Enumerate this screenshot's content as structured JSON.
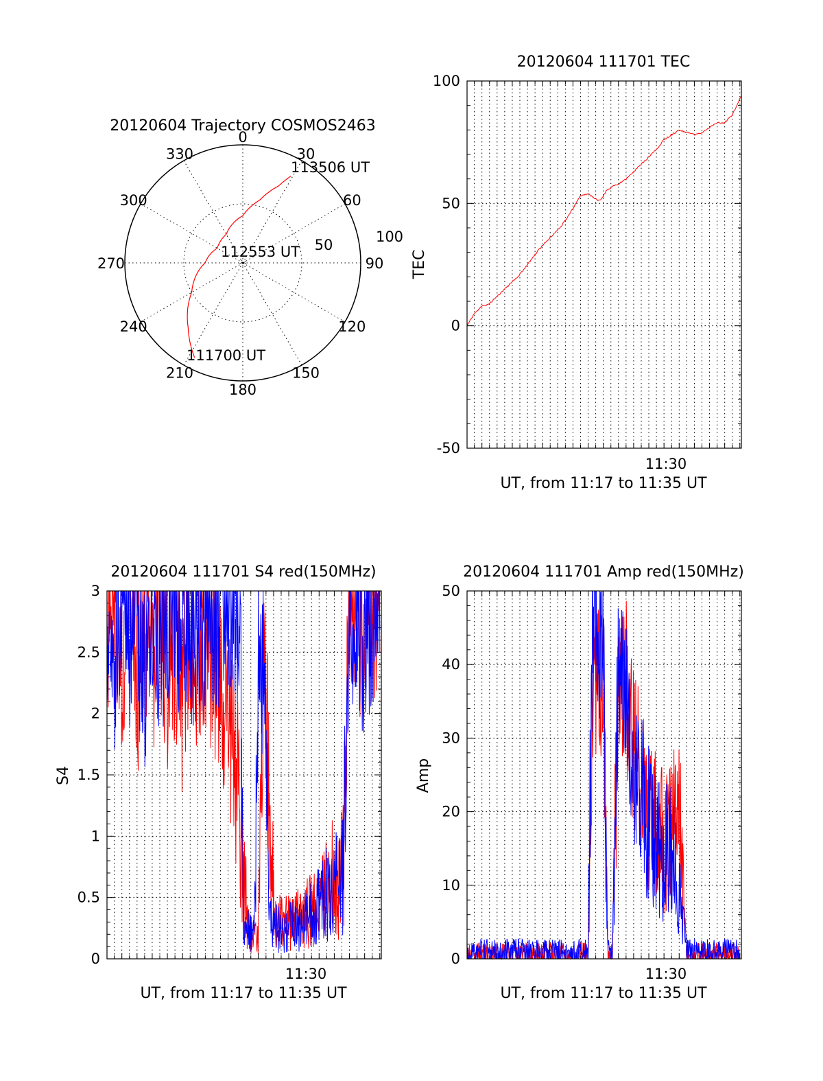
{
  "figure_title": "",
  "polar": {
    "title": "20120604 Trajectory COSMOS2463",
    "azimuth_labels": [
      "0",
      "30",
      "60",
      "90",
      "120",
      "150",
      "180",
      "210",
      "240",
      "270",
      "300",
      "330"
    ],
    "radial_labels": [
      "50",
      "100"
    ],
    "point_labels": {
      "start": "111700 UT",
      "mid": "112553 UT",
      "end": "113506 UT"
    },
    "trace_color": "#ff0000"
  },
  "chart_data": [
    {
      "type": "polar",
      "title": "20120604 Trajectory COSMOS2463",
      "theta_unit": "deg",
      "r_range": [
        0,
        100
      ],
      "grid": true,
      "trajectory": {
        "color": "#ff0000",
        "points": [
          {
            "az": 207,
            "r": 90,
            "label": "111700 UT"
          },
          {
            "az": 220,
            "r": 72
          },
          {
            "az": 240,
            "r": 50
          },
          {
            "az": 270,
            "r": 32
          },
          {
            "az": 300,
            "r": 25
          },
          {
            "az": 330,
            "r": 28
          },
          {
            "az": 360,
            "r": 40
          },
          {
            "az": 15,
            "r": 55
          },
          {
            "az": 25,
            "r": 72
          },
          {
            "az": 29,
            "r": 84,
            "label": "113506 UT"
          }
        ],
        "mid_label": "112553 UT"
      }
    },
    {
      "type": "line",
      "title": "20120604 111701 TEC",
      "xlabel": "UT, from 11:17 to 11:35 UT",
      "ylabel": "TEC",
      "x_unit": "minutes",
      "xlim": [
        17.02,
        35.1
      ],
      "ylim": [
        -50,
        100
      ],
      "yticks": [
        "-50",
        "0",
        "50",
        "100"
      ],
      "xticks": [
        {
          "value": 30,
          "label": "11:30"
        }
      ],
      "grid": true,
      "series": [
        {
          "color": "#ff0000",
          "x": [
            17.02,
            17.5,
            18.0,
            18.5,
            19.0,
            19.5,
            20.0,
            20.5,
            21.0,
            21.5,
            22.0,
            22.5,
            23.0,
            23.5,
            24.0,
            24.5,
            25.0,
            25.4,
            25.8,
            26.2,
            26.6,
            27.0,
            27.5,
            28.0,
            28.5,
            29.0,
            29.5,
            30.0,
            30.5,
            31.0,
            31.5,
            32.0,
            32.5,
            33.0,
            33.5,
            34.0,
            34.5,
            35.1
          ],
          "values": [
            0,
            5,
            8,
            9,
            12,
            15,
            18,
            21,
            25,
            29,
            33,
            36,
            39,
            43,
            48,
            53,
            54,
            52,
            51,
            55,
            57,
            58,
            60,
            63,
            66,
            69,
            72,
            76,
            78,
            80,
            79,
            78,
            79,
            81,
            83,
            83,
            86,
            94
          ]
        }
      ]
    },
    {
      "type": "line",
      "title": "20120604 111701 S4 red(150MHz)",
      "xlabel": "UT, from 11:17 to 11:35 UT",
      "ylabel": "S4",
      "x_unit": "minutes",
      "xlim": [
        17.02,
        35.1
      ],
      "ylim": [
        0,
        3
      ],
      "yticks": [
        "0",
        "0.5",
        "1",
        "1.5",
        "2",
        "2.5",
        "3"
      ],
      "xticks": [
        {
          "value": 30,
          "label": "11:30"
        }
      ],
      "grid": true,
      "series": [
        {
          "color": "#ff0000",
          "x": [
            17.0,
            17.5,
            18.0,
            18.5,
            19.0,
            19.5,
            20.0,
            20.5,
            21.0,
            21.5,
            22.0,
            22.5,
            23.0,
            23.5,
            24.0,
            24.5,
            25.0,
            25.4,
            25.8,
            26.0,
            26.3,
            26.7,
            27.0,
            27.4,
            27.8,
            28.2,
            28.6,
            29.0,
            29.4,
            29.8,
            30.2,
            30.6,
            31.0,
            31.4,
            31.8,
            32.2,
            32.6,
            33.0,
            33.5,
            34.0,
            34.5,
            35.0
          ],
          "values": [
            2.6,
            2.8,
            2.5,
            2.9,
            2.2,
            2.7,
            2.4,
            2.9,
            2.3,
            2.6,
            2.1,
            2.8,
            2.4,
            2.6,
            2.4,
            2.2,
            2.0,
            1.6,
            1.2,
            0.85,
            0.25,
            0.2,
            0.15,
            2.5,
            0.9,
            0.3,
            0.28,
            0.3,
            0.32,
            0.35,
            0.38,
            0.4,
            0.45,
            0.55,
            0.62,
            0.7,
            0.8,
            2.9,
            2.8,
            2.7,
            2.9,
            2.8
          ]
        },
        {
          "color": "#0000ff",
          "x": [
            17.0,
            17.5,
            18.0,
            18.5,
            19.0,
            19.5,
            20.0,
            20.5,
            21.0,
            21.5,
            22.0,
            22.5,
            23.0,
            23.5,
            24.0,
            24.5,
            25.0,
            25.4,
            25.8,
            26.0,
            26.3,
            26.7,
            27.0,
            27.4,
            27.8,
            28.2,
            28.6,
            29.0,
            29.4,
            29.8,
            30.2,
            30.6,
            31.0,
            31.4,
            31.8,
            32.2,
            32.6,
            33.0,
            33.5,
            34.0,
            34.5,
            35.0
          ],
          "values": [
            2.7,
            2.4,
            2.9,
            2.6,
            2.8,
            2.3,
            2.9,
            2.5,
            2.8,
            2.7,
            2.9,
            2.6,
            2.8,
            2.7,
            2.9,
            2.8,
            2.9,
            2.8,
            2.9,
            0.2,
            0.22,
            0.2,
            2.5,
            2.3,
            0.3,
            0.25,
            0.22,
            0.25,
            0.28,
            0.3,
            0.32,
            0.36,
            0.42,
            0.5,
            0.55,
            0.6,
            0.65,
            2.8,
            2.9,
            2.5,
            2.8,
            2.9
          ]
        }
      ]
    },
    {
      "type": "line",
      "title": "20120604 111701 Amp red(150MHz)",
      "xlabel": "UT, from 11:17 to 11:35 UT",
      "ylabel": "Amp",
      "x_unit": "minutes",
      "xlim": [
        17.02,
        35.1
      ],
      "ylim": [
        0,
        50
      ],
      "yticks": [
        "0",
        "10",
        "20",
        "30",
        "40",
        "50"
      ],
      "xticks": [
        {
          "value": 30,
          "label": "11:30"
        }
      ],
      "grid": true,
      "series": [
        {
          "color": "#ff0000",
          "x": [
            17.0,
            18.0,
            19.0,
            20.0,
            21.0,
            22.0,
            23.0,
            24.0,
            25.0,
            25.3,
            25.6,
            26.0,
            26.3,
            26.6,
            27.0,
            27.5,
            28.0,
            28.5,
            29.0,
            29.5,
            30.0,
            30.5,
            31.0,
            31.5,
            32.0,
            33.0,
            34.0,
            35.0
          ],
          "values": [
            0.5,
            0.6,
            0.5,
            0.6,
            0.5,
            0.6,
            0.5,
            0.6,
            0.5,
            35,
            40,
            36,
            0.5,
            0.5,
            37,
            38,
            28,
            25,
            18,
            20,
            15,
            16,
            22,
            0.5,
            0.5,
            0.5,
            0.5,
            0.5
          ]
        },
        {
          "color": "#0000ff",
          "x": [
            17.0,
            18.0,
            19.0,
            20.0,
            21.0,
            22.0,
            23.0,
            24.0,
            25.0,
            25.3,
            25.6,
            26.0,
            26.3,
            26.6,
            27.0,
            27.5,
            28.0,
            28.5,
            29.0,
            29.5,
            30.0,
            30.5,
            31.0,
            31.5,
            32.0,
            33.0,
            34.0,
            35.0
          ],
          "values": [
            1.0,
            1.1,
            1.0,
            1.2,
            1.0,
            1.1,
            1.0,
            1.1,
            1.0,
            48,
            42,
            45,
            1.0,
            1.2,
            40,
            35,
            27,
            22,
            18,
            17,
            14,
            15,
            9,
            1.0,
            1.1,
            1.0,
            1.1,
            1.0
          ]
        }
      ]
    }
  ]
}
